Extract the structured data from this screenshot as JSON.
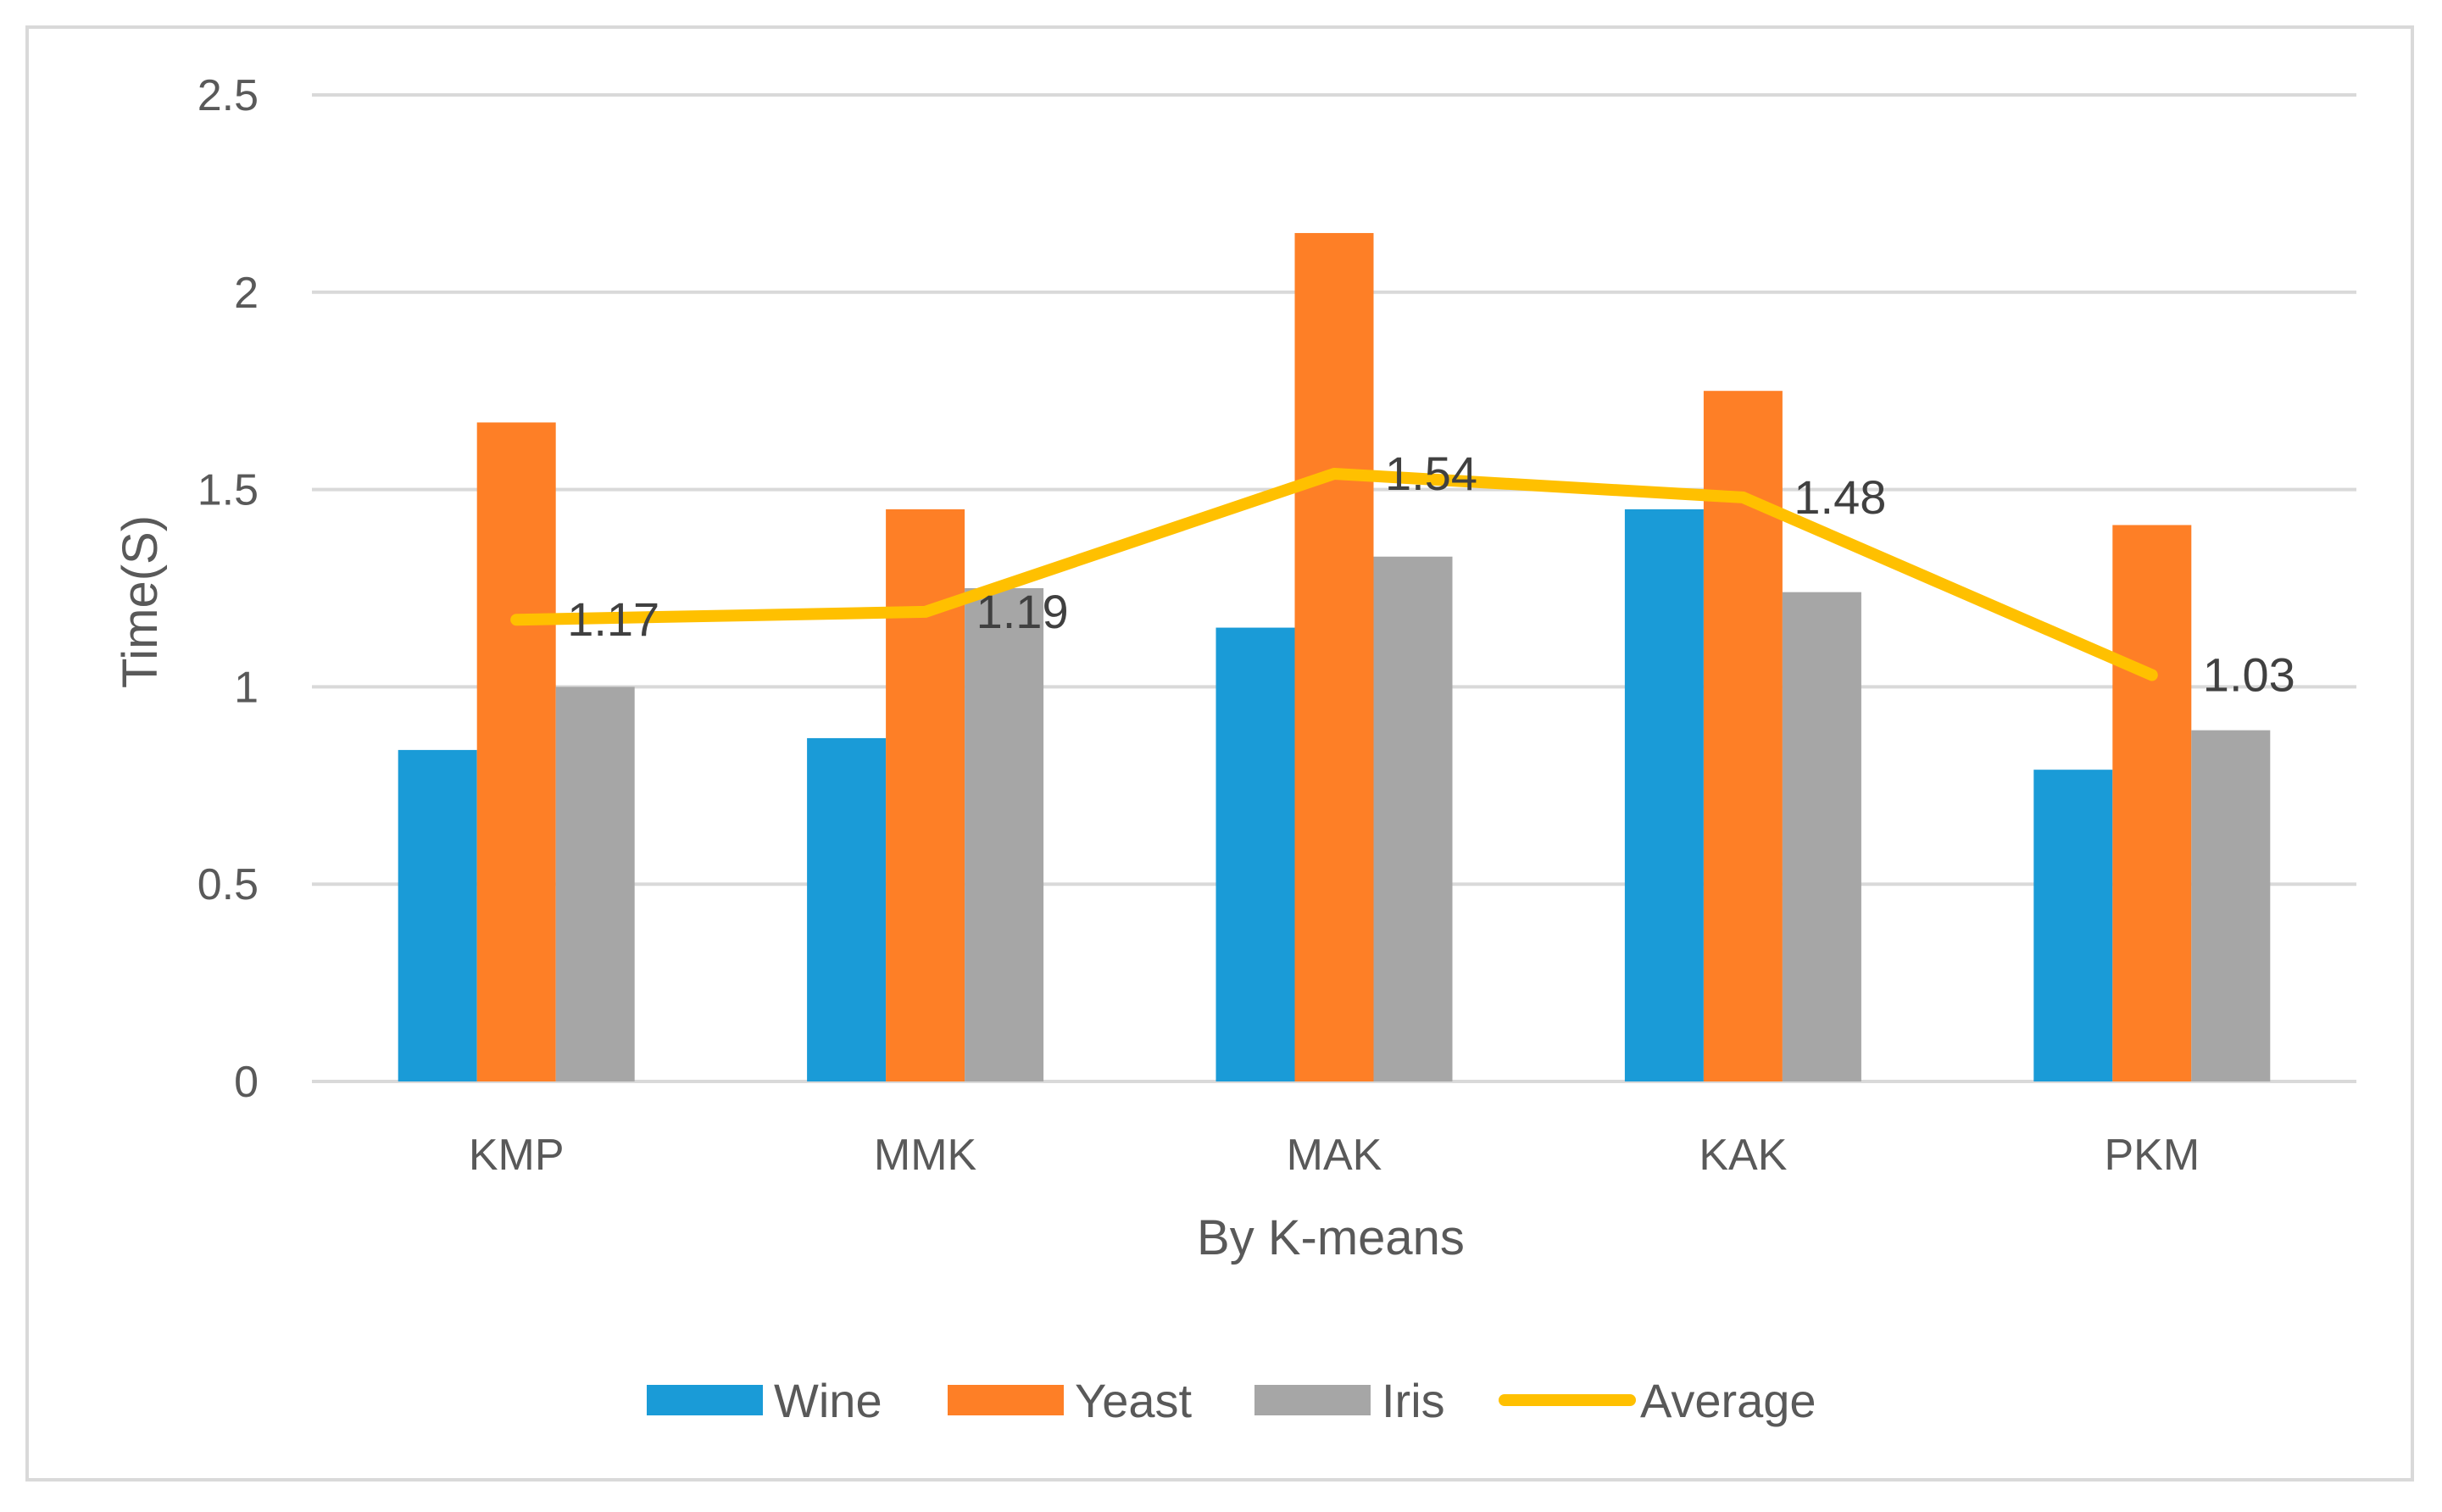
{
  "chart_data": {
    "type": "bar",
    "title": "",
    "xlabel": "By K-means",
    "ylabel": "Time(S)",
    "ylim": [
      0,
      2.5
    ],
    "yticks": [
      0,
      0.5,
      1,
      1.5,
      2,
      2.5
    ],
    "ytick_labels": [
      "0",
      "0.5",
      "1",
      "1.5",
      "2",
      "2.5"
    ],
    "grid": true,
    "legend_position": "bottom",
    "categories": [
      "KMP",
      "MMK",
      "MAK",
      "KAK",
      "PKM"
    ],
    "series": [
      {
        "name": "Wine",
        "type": "bar",
        "color": "#1a9bd7",
        "values": [
          0.84,
          0.87,
          1.15,
          1.45,
          0.79
        ]
      },
      {
        "name": "Yeast",
        "type": "bar",
        "color": "#fe7f26",
        "values": [
          1.67,
          1.45,
          2.15,
          1.75,
          1.41
        ]
      },
      {
        "name": "Iris",
        "type": "bar",
        "color": "#a6a6a6",
        "values": [
          1.0,
          1.25,
          1.33,
          1.24,
          0.89
        ]
      },
      {
        "name": "Average",
        "type": "line",
        "color": "#ffc000",
        "values": [
          1.17,
          1.19,
          1.54,
          1.48,
          1.03
        ],
        "labels": [
          "1.17",
          "1.19",
          "1.54",
          "1.48",
          "1.03"
        ]
      }
    ]
  }
}
